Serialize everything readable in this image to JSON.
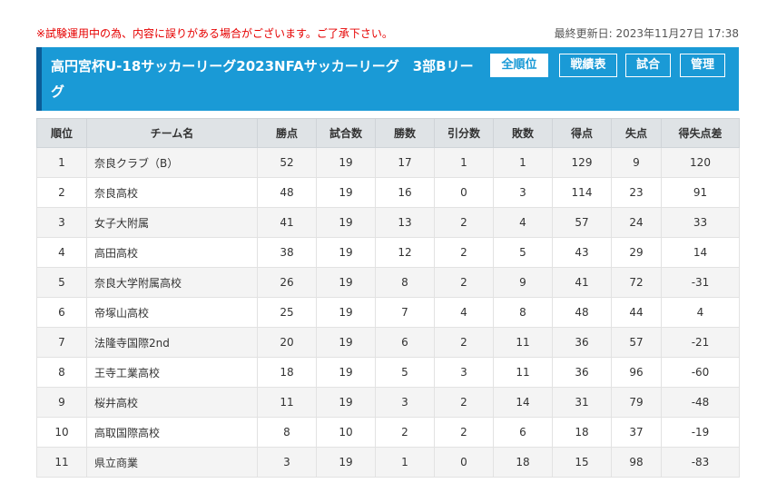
{
  "notice": "※試験運用中の為、内容に誤りがある場合がございます。ご了承下さい。",
  "last_updated": "最終更新日: 2023年11月27日 17:38",
  "header": {
    "title": "高円宮杯U-18サッカーリーグ2023NFAサッカーリーグ　3部Bリーグ",
    "buttons": {
      "all_rank": "全順位",
      "match_table": "戦績表",
      "matches": "試合",
      "manage": "管理"
    }
  },
  "table": {
    "columns": [
      "順位",
      "チーム名",
      "勝点",
      "試合数",
      "勝数",
      "引分数",
      "敗数",
      "得点",
      "失点",
      "得失点差"
    ],
    "rows": [
      [
        "1",
        "奈良クラブ（B）",
        "52",
        "19",
        "17",
        "1",
        "1",
        "129",
        "9",
        "120"
      ],
      [
        "2",
        "奈良高校",
        "48",
        "19",
        "16",
        "0",
        "3",
        "114",
        "23",
        "91"
      ],
      [
        "3",
        "女子大附属",
        "41",
        "19",
        "13",
        "2",
        "4",
        "57",
        "24",
        "33"
      ],
      [
        "4",
        "高田高校",
        "38",
        "19",
        "12",
        "2",
        "5",
        "43",
        "29",
        "14"
      ],
      [
        "5",
        "奈良大学附属高校",
        "26",
        "19",
        "8",
        "2",
        "9",
        "41",
        "72",
        "-31"
      ],
      [
        "6",
        "帝塚山高校",
        "25",
        "19",
        "7",
        "4",
        "8",
        "48",
        "44",
        "4"
      ],
      [
        "7",
        "法隆寺国際2nd",
        "20",
        "19",
        "6",
        "2",
        "11",
        "36",
        "57",
        "-21"
      ],
      [
        "8",
        "王寺工業高校",
        "18",
        "19",
        "5",
        "3",
        "11",
        "36",
        "96",
        "-60"
      ],
      [
        "9",
        "桜井高校",
        "11",
        "19",
        "3",
        "2",
        "14",
        "31",
        "79",
        "-48"
      ],
      [
        "10",
        "高取国際高校",
        "8",
        "10",
        "2",
        "2",
        "6",
        "18",
        "37",
        "-19"
      ],
      [
        "11",
        "県立商業",
        "3",
        "19",
        "1",
        "0",
        "18",
        "15",
        "98",
        "-83"
      ]
    ]
  },
  "colors": {
    "header_bg": "#1a9ad6",
    "header_accent": "#0b5c97",
    "notice": "#e60000"
  }
}
